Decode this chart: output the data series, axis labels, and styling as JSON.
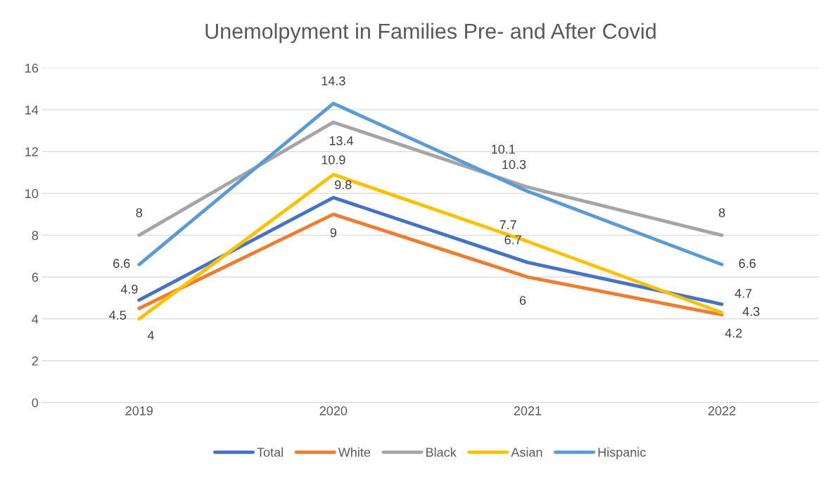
{
  "chart_data": {
    "type": "line",
    "title": "Unemolpyment in Families Pre- and After Covid",
    "categories": [
      "2019",
      "2020",
      "2021",
      "2022"
    ],
    "series": [
      {
        "name": "Total",
        "color": "#4472c4",
        "values": [
          4.9,
          9.8,
          6.7,
          4.7
        ]
      },
      {
        "name": "White",
        "color": "#ed7d31",
        "values": [
          4.5,
          9,
          6,
          4.2
        ]
      },
      {
        "name": "Black",
        "color": "#a5a5a5",
        "values": [
          8,
          13.4,
          10.3,
          8
        ]
      },
      {
        "name": "Asian",
        "color": "#ffc000",
        "values": [
          4,
          10.9,
          7.7,
          4.3
        ]
      },
      {
        "name": "Hispanic",
        "color": "#5b9bd5",
        "values": [
          6.6,
          14.3,
          10.1,
          6.6
        ]
      }
    ],
    "ylim": [
      0,
      16
    ],
    "yticks": [
      0,
      2,
      4,
      6,
      8,
      10,
      12,
      14,
      16
    ],
    "grid": "y",
    "legend": "bottom",
    "data_labels": true,
    "marker": "none",
    "line_style": "solid"
  }
}
